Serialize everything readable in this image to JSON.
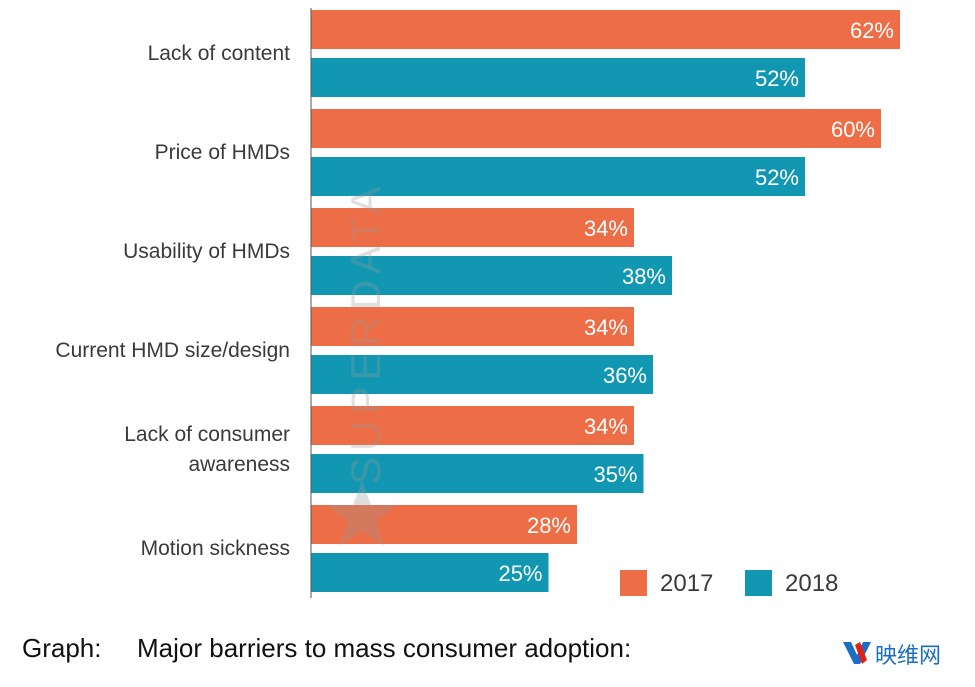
{
  "chart_data": {
    "type": "bar",
    "orientation": "horizontal",
    "title": "Major barriers to mass consumer adoption:",
    "caption_prefix": "Graph:",
    "categories": [
      [
        "Lack of content"
      ],
      [
        "Price of HMDs"
      ],
      [
        "Usability of HMDs"
      ],
      [
        "Current HMD size/design"
      ],
      [
        "Lack of consumer",
        "awareness"
      ],
      [
        "Motion sickness"
      ]
    ],
    "series": [
      {
        "name": "2017",
        "color": "#EC6D46",
        "values": [
          62,
          60,
          34,
          34,
          34,
          28
        ]
      },
      {
        "name": "2018",
        "color": "#1297B2",
        "values": [
          52,
          52,
          38,
          36,
          35,
          25
        ]
      }
    ],
    "value_suffix": "%",
    "xlim": [
      0,
      62
    ],
    "grid": false,
    "legend_position": "bottom-right"
  },
  "watermark": "SUPERDATA",
  "logo": {
    "mark": "YV",
    "text": "映维网",
    "color": "#1a6fc4",
    "accent": "#e0201b"
  }
}
